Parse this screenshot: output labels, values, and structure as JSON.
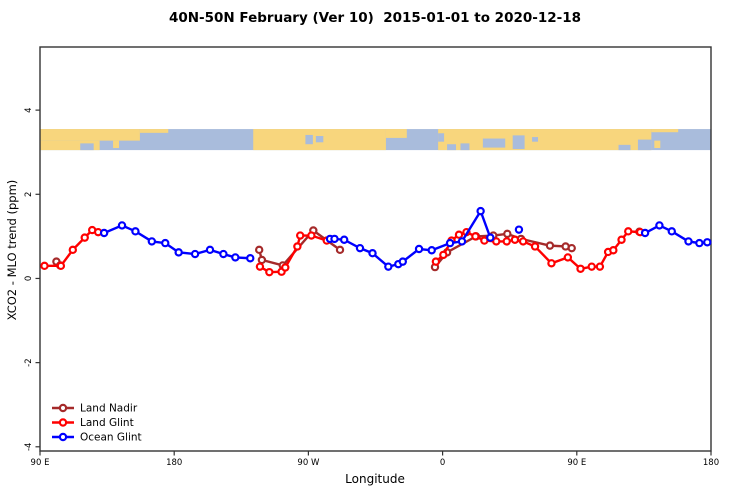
{
  "chart_data": {
    "type": "line",
    "title": "40N-50N February (Ver 10)  2015-01-01 to 2020-12-18",
    "xlabel": "Longitude",
    "ylabel": "XCO2 - MLO trend (ppm)",
    "x_axis": {
      "range": [
        0,
        450
      ],
      "note": "longitude axis wraps eastward from 90E: 90E-180-90W-0-90E-180",
      "ticks": [
        {
          "t": 0,
          "label": "90 E"
        },
        {
          "t": 90,
          "label": "180"
        },
        {
          "t": 180,
          "label": "90 W"
        },
        {
          "t": 270,
          "label": "0"
        },
        {
          "t": 360,
          "label": "90 E"
        },
        {
          "t": 450,
          "label": "180"
        }
      ]
    },
    "y_axis": {
      "range": [
        -4.1,
        5.5
      ],
      "ticks": [
        {
          "v": -4,
          "label": "-4"
        },
        {
          "v": -2,
          "label": "-2"
        },
        {
          "v": 0,
          "label": "0"
        },
        {
          "v": 2,
          "label": "2"
        },
        {
          "v": 4,
          "label": "4"
        }
      ],
      "grid": false
    },
    "map_strip": {
      "y_range_ppm": [
        3.05,
        3.55
      ],
      "land_color": "#F8D67D",
      "ocean_color": "#A9BCDC",
      "land_segments": [
        {
          "t0": 0,
          "t1": 67,
          "y0": 0,
          "y1": 0.55
        },
        {
          "t0": 0,
          "t1": 40,
          "y0": 0.55,
          "y1": 1
        },
        {
          "t0": 49,
          "t1": 53,
          "y0": 0.55,
          "y1": 0.9
        },
        {
          "t0": 67,
          "t1": 86,
          "y0": 0,
          "y1": 0.18
        },
        {
          "t0": 143,
          "t1": 232,
          "y0": 0,
          "y1": 1
        },
        {
          "t0": 232,
          "t1": 246,
          "y0": 0,
          "y1": 0.42
        },
        {
          "t0": 267,
          "t1": 410,
          "y0": 0,
          "y1": 1
        },
        {
          "t0": 410,
          "t1": 428,
          "y0": 0,
          "y1": 0.15
        },
        {
          "t0": 412,
          "t1": 416,
          "y0": 0.55,
          "y1": 0.9
        }
      ],
      "ocean_inlets": [
        {
          "t0": 27,
          "t1": 36,
          "y0": 0.68,
          "y1": 1
        },
        {
          "t0": 178,
          "t1": 183,
          "y0": 0.28,
          "y1": 0.72
        },
        {
          "t0": 185,
          "t1": 190,
          "y0": 0.33,
          "y1": 0.63
        },
        {
          "t0": 267,
          "t1": 271,
          "y0": 0.2,
          "y1": 0.6
        },
        {
          "t0": 273,
          "t1": 279,
          "y0": 0.72,
          "y1": 1
        },
        {
          "t0": 282,
          "t1": 288,
          "y0": 0.68,
          "y1": 1
        },
        {
          "t0": 297,
          "t1": 312,
          "y0": 0.45,
          "y1": 0.88
        },
        {
          "t0": 317,
          "t1": 325,
          "y0": 0.3,
          "y1": 0.95
        },
        {
          "t0": 330,
          "t1": 334,
          "y0": 0.38,
          "y1": 0.6
        },
        {
          "t0": 388,
          "t1": 396,
          "y0": 0.75,
          "y1": 1
        },
        {
          "t0": 401,
          "t1": 410,
          "y0": 0.5,
          "y1": 1
        }
      ]
    },
    "series": [
      {
        "name": "Land Nadir",
        "color": "#A52A2A",
        "segments": [
          [
            [
              11,
              0.4
            ],
            [
              13.5,
              0.31
            ]
          ],
          [
            [
              147,
              0.68
            ],
            [
              148.8,
              0.44
            ],
            [
              162.8,
              0.31
            ],
            [
              183.3,
              1.14
            ],
            [
              201.2,
              0.68
            ]
          ],
          [
            [
              264.9,
              0.27
            ],
            [
              273,
              0.62
            ],
            [
              292.4,
              1.0
            ],
            [
              304,
              1.02
            ],
            [
              313.4,
              1.06
            ],
            [
              322.6,
              0.94
            ],
            [
              342,
              0.78
            ],
            [
              352.5,
              0.76
            ],
            [
              356.6,
              0.72
            ]
          ],
          [
            [
              402,
              1.11
            ]
          ]
        ]
      },
      {
        "name": "Land Glint",
        "color": "#FF0000",
        "segments": [
          [
            [
              3,
              0.3
            ],
            [
              14,
              0.3
            ],
            [
              22,
              0.68
            ],
            [
              30,
              0.97
            ],
            [
              35,
              1.15
            ],
            [
              39,
              1.1
            ]
          ],
          [
            [
              147.5,
              0.28
            ],
            [
              153.8,
              0.15
            ],
            [
              162,
              0.16
            ],
            [
              164.5,
              0.26
            ],
            [
              172.6,
              0.76
            ],
            [
              174.5,
              1.02
            ],
            [
              182,
              1.02
            ],
            [
              192.3,
              0.9
            ]
          ],
          [
            [
              265.5,
              0.4
            ],
            [
              270.5,
              0.56
            ],
            [
              276,
              0.9
            ],
            [
              281,
              1.04
            ],
            [
              286,
              1.1
            ],
            [
              292,
              1.0
            ],
            [
              298,
              0.9
            ],
            [
              306,
              0.88
            ],
            [
              313,
              0.88
            ],
            [
              318.5,
              0.92
            ],
            [
              324,
              0.88
            ],
            [
              332,
              0.76
            ],
            [
              343,
              0.36
            ],
            [
              354,
              0.5
            ],
            [
              362.5,
              0.23
            ],
            [
              370,
              0.28
            ],
            [
              375.5,
              0.28
            ],
            [
              381,
              0.63
            ],
            [
              384.5,
              0.67
            ],
            [
              390,
              0.92
            ],
            [
              394.5,
              1.12
            ],
            [
              402.5,
              1.1
            ]
          ]
        ]
      },
      {
        "name": "Ocean Glint",
        "color": "#0000FF",
        "segments": [
          [
            [
              43,
              1.08
            ],
            [
              55,
              1.26
            ],
            [
              64,
              1.12
            ],
            [
              75,
              0.88
            ],
            [
              84,
              0.84
            ],
            [
              93,
              0.62
            ],
            [
              104,
              0.58
            ],
            [
              114,
              0.68
            ],
            [
              123,
              0.58
            ],
            [
              131,
              0.5
            ],
            [
              141,
              0.48
            ]
          ],
          [
            [
              194.5,
              0.94
            ],
            [
              197.5,
              0.94
            ],
            [
              204,
              0.92
            ],
            [
              214.6,
              0.72
            ],
            [
              223,
              0.6
            ],
            [
              233.6,
              0.28
            ],
            [
              240.3,
              0.34
            ],
            [
              243.3,
              0.4
            ],
            [
              254.2,
              0.7
            ],
            [
              262.7,
              0.67
            ],
            [
              275,
              0.84
            ],
            [
              283,
              0.88
            ],
            [
              295.5,
              1.6
            ],
            [
              302,
              0.97
            ]
          ],
          [
            [
              321.2,
              1.16
            ]
          ],
          [
            [
              405.8,
              1.08
            ],
            [
              415.4,
              1.26
            ],
            [
              423.7,
              1.12
            ],
            [
              434.9,
              0.88
            ],
            [
              442.2,
              0.84
            ],
            [
              447.5,
              0.86
            ]
          ]
        ]
      }
    ],
    "legend": {
      "position": "bottom-left",
      "entries": [
        "Land Nadir",
        "Land Glint",
        "Ocean Glint"
      ]
    },
    "axis_color": "#333333",
    "text_color": "#000000"
  }
}
